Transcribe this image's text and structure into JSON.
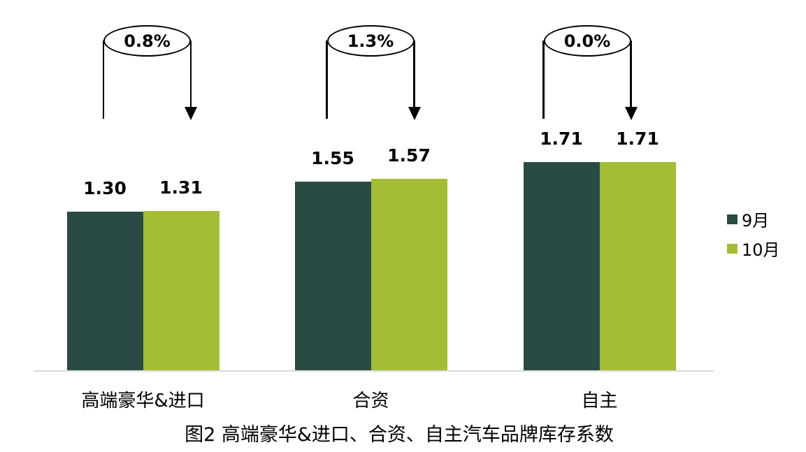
{
  "chart_data": {
    "type": "bar",
    "title": "图2 高端豪华&进口、合资、自主汽车品牌库存系数",
    "categories": [
      "高端豪华&进口",
      "合资",
      "自主"
    ],
    "series": [
      {
        "name": "9月",
        "color": "#2A4A44",
        "values": [
          1.3,
          1.55,
          1.71
        ]
      },
      {
        "name": "10月",
        "color": "#A3BD36",
        "values": [
          1.31,
          1.57,
          1.71
        ]
      }
    ],
    "value_labels": [
      [
        "1.30",
        "1.31"
      ],
      [
        "1.55",
        "1.57"
      ],
      [
        "1.71",
        "1.71"
      ]
    ],
    "annotations": [
      {
        "label": "0.8%"
      },
      {
        "label": "1.3%"
      },
      {
        "label": "0.0%"
      }
    ],
    "legend_position": "right",
    "legend_entries": [
      "9月",
      "10月"
    ],
    "xlabel": "",
    "ylabel": "",
    "ylim": [
      0,
      1.9
    ],
    "grid": false,
    "axis_line_color": "#D9D9D9",
    "value_label_color": "#000000",
    "annotation_stroke_color": "#000000"
  }
}
